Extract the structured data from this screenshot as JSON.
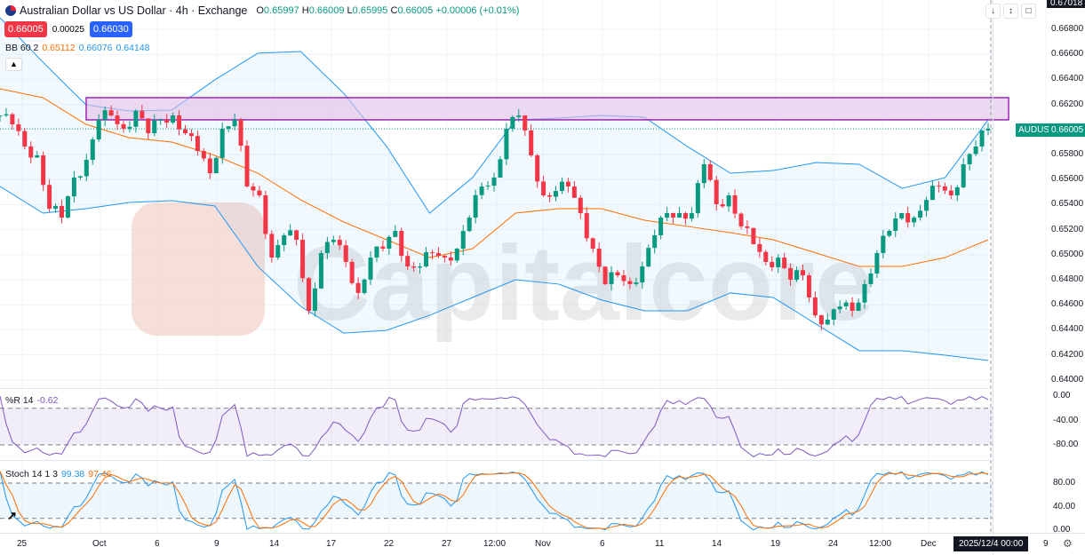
{
  "header": {
    "title": "Australian Dollar vs US Dollar · 4h · Exchange",
    "o_label": "O",
    "o": "0.65997",
    "h_label": "H",
    "h": "0.66009",
    "l_label": "L",
    "l": "0.65995",
    "c_label": "C",
    "c": "0.66005",
    "change": "+0.00006 (+0.01%)"
  },
  "quote": {
    "sell": "0.66005",
    "spread": "0.00025",
    "buy": "0.66030"
  },
  "bb": {
    "label": "BB 60 2",
    "basis": "0.65112",
    "upper": "0.66076",
    "lower": "0.64148",
    "basis_color": "#ff6d00",
    "band_color": "#2196f3"
  },
  "wr": {
    "label": "%R 14",
    "value": "-0.62",
    "color": "#7e57c2"
  },
  "stoch": {
    "label": "Stoch 14 1 3",
    "k": "99.38",
    "d": "97.46",
    "k_color": "#2196f3",
    "d_color": "#ff6d00"
  },
  "toolbar": {
    "icons": [
      "arrow-down-icon",
      "collapse-icon",
      "fullscreen-icon"
    ]
  },
  "price_axis": {
    "ticks": [
      "0.66800",
      "0.66600",
      "0.66400",
      "0.66200",
      "0.65800",
      "0.65600",
      "0.65400",
      "0.65200",
      "0.65000",
      "0.64800",
      "0.64600",
      "0.64400",
      "0.64200",
      "0.64000"
    ],
    "top_value": "0.67018",
    "symbol_tag": "AUDUSD",
    "last_price": "0.66005"
  },
  "wr_axis": {
    "ticks": [
      "0.00",
      "-40.00",
      "-80.00"
    ]
  },
  "stoch_axis": {
    "ticks": [
      "80.00",
      "40.00",
      "0.00"
    ]
  },
  "time_axis": {
    "ticks": [
      "25",
      "Oct",
      "6",
      "9",
      "14",
      "17",
      "22",
      "27",
      "12:00",
      "Nov",
      "6",
      "11",
      "14",
      "19",
      "24",
      "12:00",
      "Dec",
      "9"
    ],
    "crosshair_label": "2025/12/4  00:00"
  },
  "watermark": "Capitalcore",
  "colors": {
    "up": "#089981",
    "down": "#f23645",
    "zone": "#9c27b0"
  },
  "chart_data": {
    "type": "candlestick",
    "symbol": "AUDUSD",
    "interval": "4h",
    "ylim": [
      0.64,
      0.67
    ],
    "closes": [
      0.66112,
      0.66041,
      0.65864,
      0.65793,
      0.65367,
      0.65296,
      0.65616,
      0.65757,
      0.66077,
      0.66112,
      0.66006,
      0.66148,
      0.6597,
      0.66077,
      0.66112,
      0.6597,
      0.65828,
      0.65651,
      0.66006,
      0.66077,
      0.65545,
      0.65474,
      0.64977,
      0.65155,
      0.65119,
      0.64552,
      0.65013,
      0.65119,
      0.64942,
      0.64694,
      0.64977,
      0.65048,
      0.6519,
      0.64906,
      0.64906,
      0.65013,
      0.64977,
      0.65048,
      0.65296,
      0.65545,
      0.65616,
      0.66006,
      0.66112,
      0.65793,
      0.65474,
      0.65509,
      0.65545,
      0.65332,
      0.65048,
      0.64765,
      0.64835,
      0.64765,
      0.64906,
      0.65155,
      0.65332,
      0.65332,
      0.65332,
      0.65722,
      0.65403,
      0.65474,
      0.65226,
      0.65084,
      0.64942,
      0.64977,
      0.648,
      0.64835,
      0.64516,
      0.64481,
      0.64587,
      0.64552,
      0.64765,
      0.65013,
      0.6519,
      0.65332,
      0.65296,
      0.65438,
      0.65545,
      0.65474,
      0.65722,
      0.65864,
      0.66005
    ],
    "bb_upper": [
      0.66892,
      0.66538,
      0.66197,
      0.66148,
      0.66155,
      0.66396,
      0.66609,
      0.66623,
      0.66289,
      0.65864,
      0.65332,
      0.65616,
      0.66077,
      0.66091,
      0.66112,
      0.66098,
      0.65864,
      0.65651,
      0.65672,
      0.65736,
      0.65722,
      0.6553,
      0.65616,
      0.66077
    ],
    "bb_basis": [
      0.66325,
      0.66254,
      0.66041,
      0.65935,
      0.65899,
      0.65793,
      0.65651,
      0.65438,
      0.65261,
      0.65119,
      0.64977,
      0.65048,
      0.65332,
      0.65367,
      0.65367,
      0.65275,
      0.65226,
      0.65176,
      0.65119,
      0.65013,
      0.64906,
      0.64906,
      0.64977,
      0.65119
    ],
    "bb_lower": [
      0.65545,
      0.65332,
      0.65367,
      0.65417,
      0.65431,
      0.65389,
      0.64906,
      0.64587,
      0.64374,
      0.64396,
      0.64516,
      0.64658,
      0.648,
      0.64765,
      0.64638,
      0.64552,
      0.64552,
      0.64694,
      0.64658,
      0.64445,
      0.64233,
      0.64233,
      0.64197,
      0.64155
    ],
    "zone": {
      "top": 0.66254,
      "bottom": 0.66077
    },
    "wr_levels": [
      -20,
      -80
    ],
    "stoch_levels": [
      80,
      20
    ]
  }
}
